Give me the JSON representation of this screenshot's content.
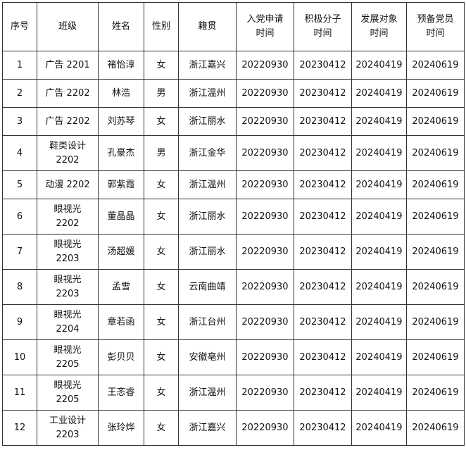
{
  "headers": [
    "序号",
    "班级",
    "姓名",
    "性别",
    "籍贯",
    "入党申请\n时间",
    "积极分子\n时间",
    "发展对象\n时间",
    "预备党员\n时间"
  ],
  "rows": [
    {
      "no": "1",
      "class": "广告 2201",
      "name": "褚怡淳",
      "gender": "女",
      "origin": "浙江嘉兴",
      "apply": "20220930",
      "active": "20230412",
      "develop": "20240419",
      "probation": "20240619"
    },
    {
      "no": "2",
      "class": "广告 2202",
      "name": "林浩",
      "gender": "男",
      "origin": "浙江温州",
      "apply": "20220930",
      "active": "20230412",
      "develop": "20240419",
      "probation": "20240619"
    },
    {
      "no": "3",
      "class": "广告 2202",
      "name": "刘苏琴",
      "gender": "女",
      "origin": "浙江丽水",
      "apply": "20220930",
      "active": "20230412",
      "develop": "20240419",
      "probation": "20240619"
    },
    {
      "no": "4",
      "class": "鞋类设计\n2202",
      "name": "孔豪杰",
      "gender": "男",
      "origin": "浙江金华",
      "apply": "20220930",
      "active": "20230412",
      "develop": "20240419",
      "probation": "20240619"
    },
    {
      "no": "5",
      "class": "动漫 2202",
      "name": "郭紫霞",
      "gender": "女",
      "origin": "浙江温州",
      "apply": "20220930",
      "active": "20230412",
      "develop": "20240419",
      "probation": "20240619"
    },
    {
      "no": "6",
      "class": "眼视光\n2202",
      "name": "董晶晶",
      "gender": "女",
      "origin": "浙江丽水",
      "apply": "20220930",
      "active": "20230412",
      "develop": "20240419",
      "probation": "20240619"
    },
    {
      "no": "7",
      "class": "眼视光\n2203",
      "name": "汤超媛",
      "gender": "女",
      "origin": "浙江丽水",
      "apply": "20220930",
      "active": "20230412",
      "develop": "20240419",
      "probation": "20240619"
    },
    {
      "no": "8",
      "class": "眼视光\n2203",
      "name": "孟雪",
      "gender": "女",
      "origin": "云南曲靖",
      "apply": "20220930",
      "active": "20230412",
      "develop": "20240419",
      "probation": "20240619"
    },
    {
      "no": "9",
      "class": "眼视光\n2204",
      "name": "章若函",
      "gender": "女",
      "origin": "浙江台州",
      "apply": "20220930",
      "active": "20230412",
      "develop": "20240419",
      "probation": "20240619"
    },
    {
      "no": "10",
      "class": "眼视光\n2205",
      "name": "彭贝贝",
      "gender": "女",
      "origin": "安徽亳州",
      "apply": "20220930",
      "active": "20230412",
      "develop": "20240419",
      "probation": "20240619"
    },
    {
      "no": "11",
      "class": "眼视光\n2205",
      "name": "王忞睿",
      "gender": "女",
      "origin": "浙江温州",
      "apply": "20220930",
      "active": "20230412",
      "develop": "20240419",
      "probation": "20240619"
    },
    {
      "no": "12",
      "class": "工业设计\n2203",
      "name": "张玲烨",
      "gender": "女",
      "origin": "浙江嘉兴",
      "apply": "20220930",
      "active": "20230412",
      "develop": "20240419",
      "probation": "20240619"
    }
  ]
}
